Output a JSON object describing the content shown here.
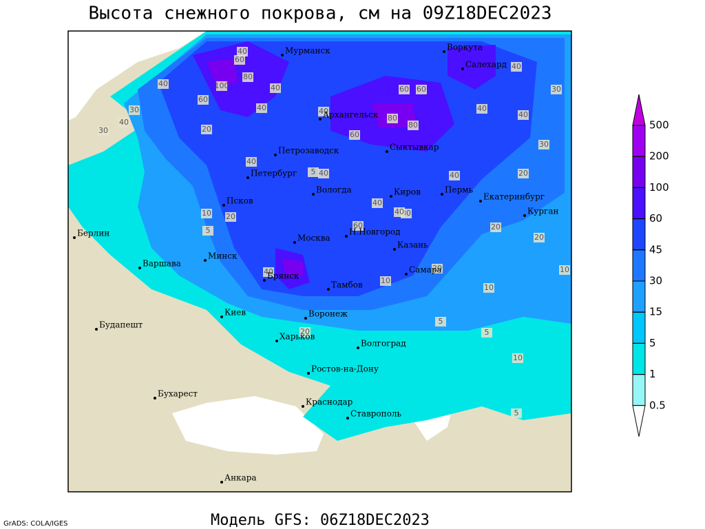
{
  "header": {
    "title": "Высота снежного покрова, см на 09Z18DEC2023"
  },
  "footer": {
    "credit": "GrADS: COLA/IGES",
    "model": "Модель GFS: 06Z18DEC2023"
  },
  "legend": {
    "levels": [
      500,
      200,
      100,
      60,
      45,
      30,
      15,
      5,
      1,
      0.5
    ],
    "colors": [
      "#c000e0",
      "#a000f0",
      "#7800f0",
      "#4a10ff",
      "#1e46ff",
      "#1e78ff",
      "#1ea0ff",
      "#00c8ff",
      "#00e6e6",
      "#96f5f5",
      "#ffffff"
    ]
  },
  "cities": [
    "Мурманск",
    "Воркута",
    "Салехард",
    "Архангельск",
    "Сыктывкар",
    "Петрозаводск",
    "Петербург",
    "Вологда",
    "Киров",
    "Пермь",
    "Екатеринбург",
    "Курган",
    "Псков",
    "Берлин",
    "Н.Новгород",
    "Москва",
    "Казань",
    "Минск",
    "Варшава",
    "Самара",
    "Брянск",
    "Тамбов",
    "Воронеж",
    "Киев",
    "Будапешт",
    "Харьков",
    "Волгоград",
    "Ростов-на-Дону",
    "Бухарест",
    "Краснодар",
    "Ставрополь",
    "Анкара"
  ],
  "contour_labels": [
    40,
    60,
    80,
    100,
    40,
    40,
    30,
    40,
    60,
    40,
    40,
    60,
    80,
    80,
    60,
    60,
    40,
    40,
    40,
    30,
    20,
    30,
    20,
    10,
    20,
    20,
    5,
    40,
    40,
    40,
    30,
    20,
    40,
    10,
    5,
    5,
    10,
    5,
    20,
    10,
    5,
    10,
    20,
    30,
    40,
    40,
    60
  ]
}
